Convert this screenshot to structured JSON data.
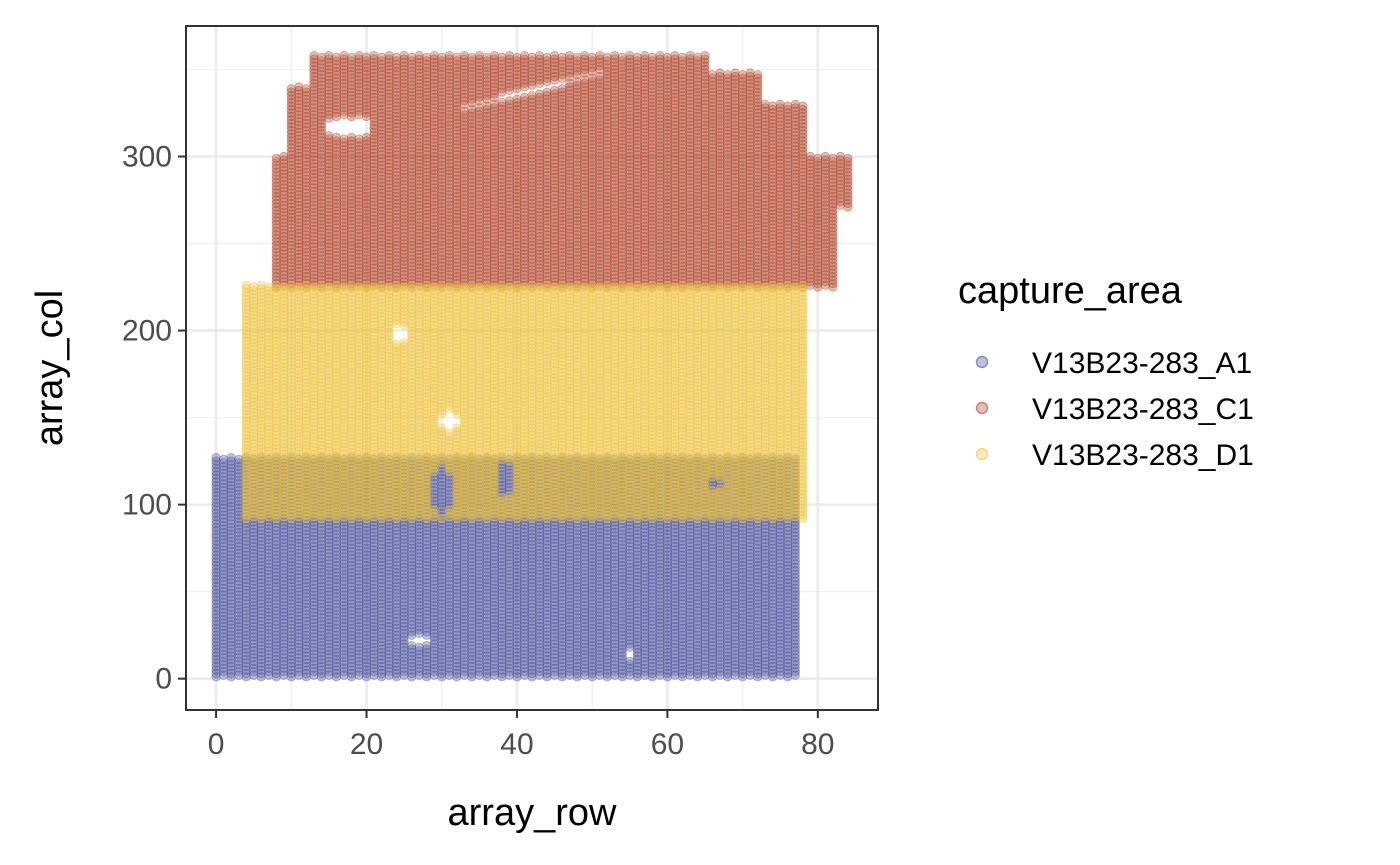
{
  "chart_data": {
    "type": "scatter",
    "xlabel": "array_row",
    "ylabel": "array_col",
    "xlim": [
      -4,
      88
    ],
    "ylim": [
      -18,
      375
    ],
    "x_ticks": [
      0,
      20,
      40,
      60,
      80
    ],
    "y_ticks": [
      0,
      100,
      200,
      300
    ],
    "x_tick_labels": [
      "0",
      "20",
      "40",
      "60",
      "80"
    ],
    "y_tick_labels": [
      "0",
      "100",
      "200",
      "300"
    ],
    "grid": true,
    "theme": "bw",
    "point_alpha": 0.35,
    "legend": {
      "title": "capture_area",
      "placement": "right"
    },
    "series": [
      {
        "name": "V13B23-283_A1",
        "color": "#4b4f9c",
        "x_range": [
          0,
          77
        ],
        "y_range": [
          1,
          127
        ]
      },
      {
        "name": "V13B23-283_C1",
        "color": "#b1452b",
        "x_range": [
          8,
          84
        ],
        "y_range": [
          225,
          358
        ]
      },
      {
        "name": "V13B23-283_D1",
        "color": "#eec43c",
        "x_range": [
          4,
          78
        ],
        "y_range": [
          92,
          226
        ]
      }
    ]
  }
}
